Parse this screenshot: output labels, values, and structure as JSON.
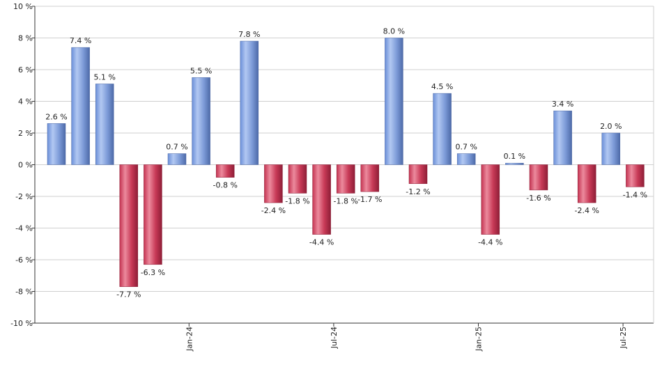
{
  "chart_data": {
    "type": "bar",
    "ylim": [
      -10,
      10
    ],
    "y_ticks": [
      10,
      8,
      6,
      4,
      2,
      0,
      -2,
      -4,
      -6,
      -8,
      -10
    ],
    "y_tick_labels": [
      "10 %",
      "8 %",
      "6 %",
      "4 %",
      "2 %",
      "0 %",
      "-2 %",
      "-4 %",
      "-6 %",
      "-8 %",
      "-10 %"
    ],
    "x_tick_labels": [
      "Jan-24",
      "Jul-24",
      "Jan-25",
      "Jul-25"
    ],
    "x_tick_positions": [
      5.5,
      11.5,
      17.5,
      23.5
    ],
    "values": [
      2.6,
      7.4,
      5.1,
      -7.7,
      -6.3,
      0.7,
      5.5,
      -0.8,
      7.8,
      -2.4,
      -1.8,
      -4.4,
      -1.8,
      -1.7,
      8.0,
      -1.2,
      4.5,
      0.7,
      -4.4,
      0.1,
      -1.6,
      3.4,
      -2.4,
      2.0,
      -1.4
    ],
    "labels": [
      "2.6 %",
      "7.4 %",
      "5.1 %",
      "-7.7 %",
      "-6.3 %",
      "0.7 %",
      "5.5 %",
      "-0.8 %",
      "7.8 %",
      "-2.4 %",
      "-1.8 %",
      "-4.4 %",
      "-1.8 %",
      "-1.7 %",
      "8.0 %",
      "-1.2 %",
      "4.5 %",
      "0.7 %",
      "-4.4 %",
      "0.1 %",
      "-1.6 %",
      "3.4 %",
      "-2.4 %",
      "2.0 %",
      "-1.4 %"
    ],
    "grid": true,
    "colors": {
      "positive": "#6f93d6",
      "negative": "#c8324f",
      "grid": "#cfcfcf",
      "axis": "#333333"
    }
  }
}
